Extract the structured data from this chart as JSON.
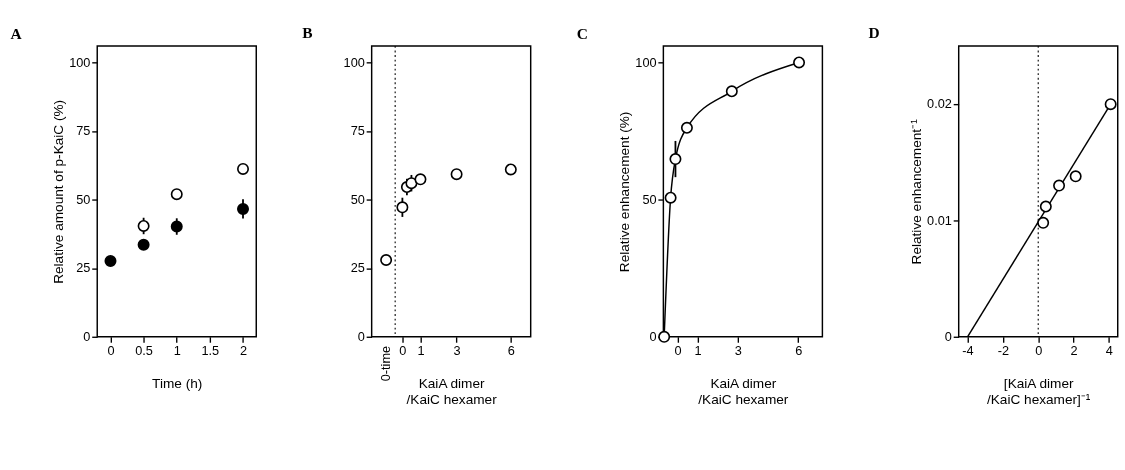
{
  "chart_data": [
    {
      "type": "scatter",
      "title": "A",
      "xlabel": "Time (h)",
      "ylabel": "Relative amount of p-KaiC (%)",
      "marker": "circle",
      "x": [
        0,
        0.5,
        1,
        2
      ],
      "series": [
        {
          "color": "#000000",
          "values": [
            27.6,
            33.6,
            40.2,
            46.6
          ],
          "errors": [
            null,
            null,
            3,
            3.5
          ]
        },
        {
          "color": "#ffffff",
          "values": [
            null,
            40.4,
            52,
            61.2
          ],
          "errors": [
            null,
            3,
            null,
            null
          ]
        }
      ],
      "xlim": [
        -0.2,
        2.2
      ],
      "xticks": [
        0,
        0.5,
        1,
        1.5,
        2
      ],
      "ylim": [
        0,
        106
      ],
      "yticks": [
        0,
        25,
        50,
        75,
        100
      ],
      "grid": false
    },
    {
      "type": "scatter",
      "title": "B",
      "xlabel": "KaiA dimer\n/KaiC hexamer",
      "marker": "circle",
      "x": [
        -0.9,
        0,
        0.25,
        0.5,
        1,
        3,
        6
      ],
      "series": [
        {
          "color": "#ffffff",
          "values": [
            28,
            47.2,
            54.6,
            56,
            57.4,
            59.3,
            61
          ],
          "errors": [
            null,
            3.5,
            3,
            3,
            null,
            null,
            null
          ]
        }
      ],
      "annotations": [
        "0-time"
      ],
      "xlim": [
        -1.7,
        7.1
      ],
      "xticks": [
        0,
        1,
        3,
        6
      ],
      "ylim": [
        0,
        106
      ],
      "yticks": [
        0,
        25,
        50,
        75,
        100
      ],
      "ref_lines": [
        {
          "axis": "x",
          "value": -0.4,
          "line_style": "dotted"
        }
      ],
      "grid": false
    },
    {
      "type": "line",
      "title": "C",
      "xlabel": "KaiA dimer\n/KaiC hexamer",
      "ylabel": "Relative enhancement (%)",
      "marker": "circle",
      "x": [
        -0.66,
        -0.34,
        -0.1,
        0.47,
        2.7,
        6.04
      ],
      "series": [
        {
          "color": "#ffffff",
          "values": [
            0,
            50.7,
            64.8,
            76.2,
            89.5,
            100
          ],
          "errors": [
            null,
            null,
            6.6,
            null,
            null,
            null
          ]
        }
      ],
      "xlim": [
        -0.7,
        7.2
      ],
      "xticks": [
        0,
        1,
        3,
        6
      ],
      "ylim": [
        0,
        106
      ],
      "yticks": [
        0,
        50,
        100
      ],
      "grid": false
    },
    {
      "type": "scatter",
      "title": "D",
      "xlabel": "[KaiA dimer\n/KaiC hexamer]⁻¹",
      "ylabel": "Relative enhancement⁻¹",
      "marker": "circle",
      "x": [
        0.28,
        0.43,
        1.18,
        2.12,
        4.1
      ],
      "series": [
        {
          "color": "#ffffff",
          "values": [
            0.0098,
            0.0112,
            0.013,
            0.0138,
            0.02
          ]
        },
        {
          "type": "line",
          "marker": "none",
          "color": "#000000",
          "x": [
            -4,
            4.1
          ],
          "values": [
            0,
            0.02
          ]
        }
      ],
      "xlim": [
        -4.5,
        4.5
      ],
      "xticks": [
        -4,
        -2,
        0,
        2,
        4
      ],
      "ylim": [
        0,
        0.025
      ],
      "yticks": [
        0,
        0.01,
        0.02
      ],
      "ref_lines": [
        {
          "axis": "x",
          "value": 0,
          "line_style": "dotted"
        }
      ],
      "grid": false
    }
  ]
}
